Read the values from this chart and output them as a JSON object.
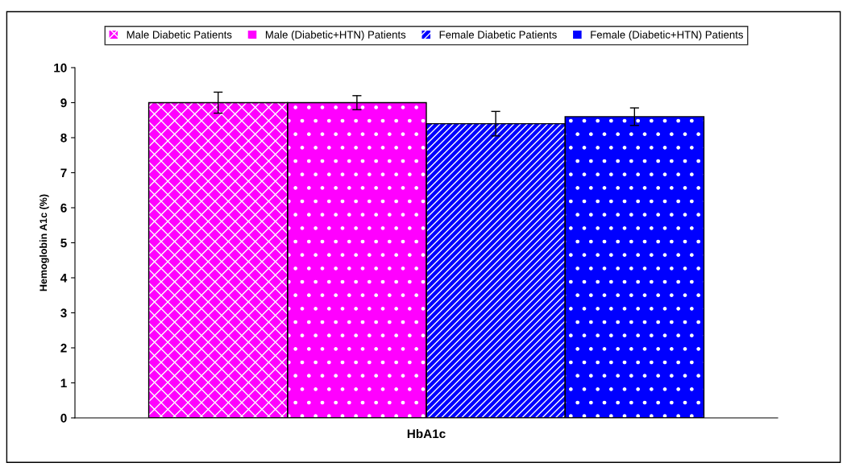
{
  "chart_data": {
    "type": "bar",
    "categories": [
      "HbA1c"
    ],
    "ylabel": "Hemoglobin A1c (%)",
    "ylim": [
      0,
      10
    ],
    "yticks": [
      0,
      1,
      2,
      3,
      4,
      5,
      6,
      7,
      8,
      9,
      10
    ],
    "grid": false,
    "legend": "top",
    "series": [
      {
        "name": "Male Diabetic Patients",
        "color": "#ff00ff",
        "values": [
          9.0
        ],
        "errors": [
          0.3
        ]
      },
      {
        "name": "Male (Diabetic+HTN) Patients",
        "color": "#ff00ff",
        "values": [
          9.0
        ],
        "errors": [
          0.2
        ]
      },
      {
        "name": "Female Diabetic Patients",
        "color": "#0000ff",
        "values": [
          8.4
        ],
        "errors": [
          0.35
        ]
      },
      {
        "name": "Female (Diabetic+HTN) Patients",
        "color": "#0000ff",
        "values": [
          8.6
        ],
        "errors": [
          0.25
        ]
      }
    ]
  }
}
